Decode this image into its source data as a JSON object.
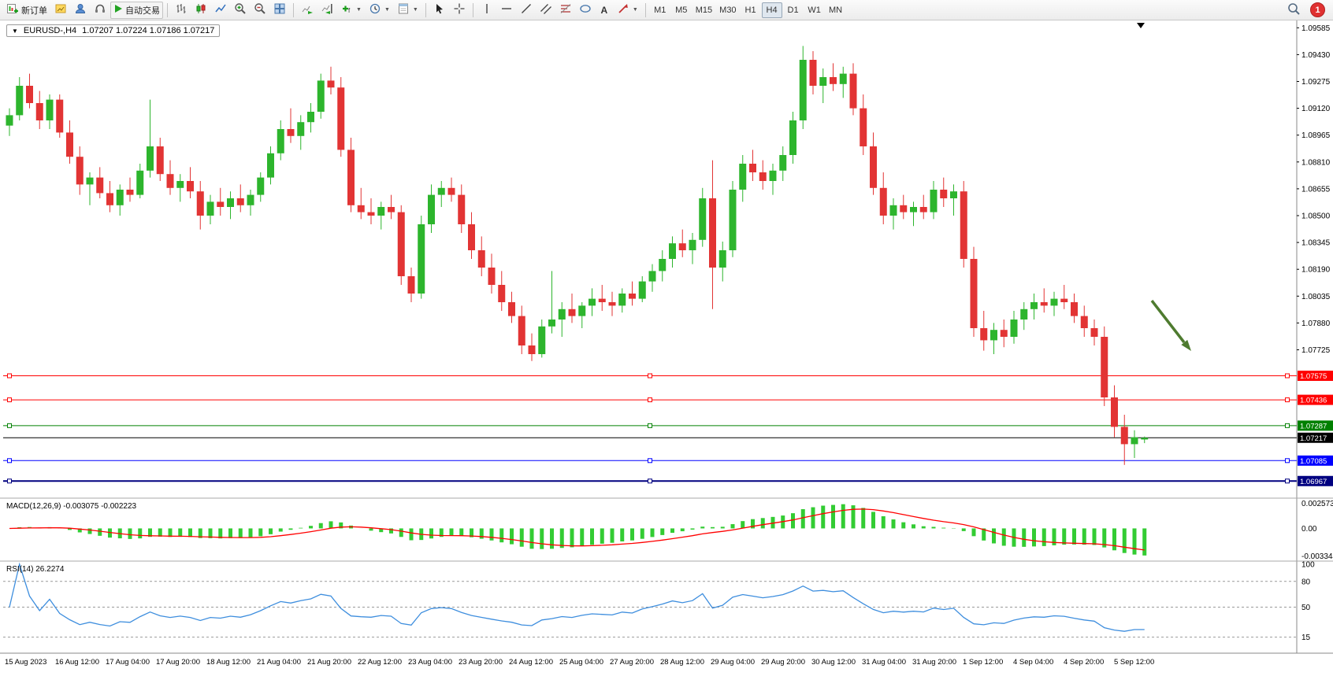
{
  "toolbar": {
    "new_order_label": "新订单",
    "autotrading_label": "自动交易",
    "timeframes": [
      "M1",
      "M5",
      "M15",
      "M30",
      "H1",
      "H4",
      "D1",
      "W1",
      "MN"
    ],
    "active_timeframe": "H4",
    "notification_count": "1"
  },
  "chart": {
    "symbol_period": "EURUSD-,H4",
    "ohlc": "1.07207 1.07224 1.07186 1.07217"
  },
  "indicators": {
    "macd_label": "MACD(12,26,9) -0.003075 -0.002223",
    "rsi_label": "RSI(14) 26.2274"
  },
  "chart_data": {
    "type": "candlestick",
    "symbol": "EURUSD-",
    "timeframe": "H4",
    "current": {
      "open": 1.07207,
      "high": 1.07224,
      "low": 1.07186,
      "close": 1.07217
    },
    "colors": {
      "bull": "#2db52d",
      "bear": "#e23434",
      "macd_hist": "#33cc33",
      "macd_signal": "#ff0000",
      "rsi_line": "#3e8ede",
      "arrow": "#4e7b2f"
    },
    "price_axis_ticks": [
      "1.09585",
      "1.09430",
      "1.09275",
      "1.09120",
      "1.08965",
      "1.08810",
      "1.08655",
      "1.08500",
      "1.08345",
      "1.08190",
      "1.08035",
      "1.07880",
      "1.07725"
    ],
    "price_range": {
      "max": 1.096,
      "min": 1.0688
    },
    "hlines": [
      {
        "price": 1.07575,
        "label": "1.07575",
        "color": "#ff0000",
        "handles": true,
        "width": 1
      },
      {
        "price": 1.07436,
        "label": "1.07436",
        "color": "#ff0000",
        "handles": true,
        "width": 1
      },
      {
        "price": 1.07287,
        "label": "1.07287",
        "color": "#008000",
        "handles": true,
        "width": 1
      },
      {
        "price": 1.07217,
        "label": "1.07217",
        "color": "#000000",
        "handles": false,
        "width": 1
      },
      {
        "price": 1.07085,
        "label": "1.07085",
        "color": "#0000ff",
        "handles": true,
        "width": 1
      },
      {
        "price": 1.06967,
        "label": "1.06967",
        "color": "#000080",
        "handles": true,
        "width": 2
      }
    ],
    "macd": {
      "params": [
        12,
        26,
        9
      ],
      "main": -0.003075,
      "signal": -0.002223,
      "axis_labels": [
        "0.002573",
        "0.00",
        "-0.003344"
      ]
    },
    "rsi": {
      "period": 14,
      "value": 26.2274,
      "axis_labels": [
        "100",
        "80",
        "50",
        "15"
      ],
      "dashed_levels": [
        80,
        50,
        15
      ]
    },
    "time_labels": [
      "15 Aug 2023",
      "16 Aug 12:00",
      "17 Aug 04:00",
      "17 Aug 20:00",
      "18 Aug 12:00",
      "21 Aug 04:00",
      "21 Aug 20:00",
      "22 Aug 12:00",
      "23 Aug 04:00",
      "23 Aug 20:00",
      "24 Aug 12:00",
      "25 Aug 04:00",
      "27 Aug 20:00",
      "28 Aug 12:00",
      "29 Aug 04:00",
      "29 Aug 20:00",
      "30 Aug 12:00",
      "31 Aug 04:00",
      "31 Aug 20:00",
      "1 Sep 12:00",
      "4 Sep 04:00",
      "4 Sep 20:00",
      "5 Sep 12:00"
    ],
    "candles": [
      [
        1.0902,
        1.0912,
        1.0896,
        1.0908
      ],
      [
        1.0908,
        1.093,
        1.0905,
        1.0925
      ],
      [
        1.0925,
        1.0932,
        1.0912,
        1.0915
      ],
      [
        1.0915,
        1.0922,
        1.09,
        1.0905
      ],
      [
        1.0905,
        1.092,
        1.09,
        1.0917
      ],
      [
        1.0917,
        1.092,
        1.0895,
        1.0898
      ],
      [
        1.0898,
        1.0905,
        1.088,
        1.0884
      ],
      [
        1.0884,
        1.089,
        1.0862,
        1.0868
      ],
      [
        1.0868,
        1.0875,
        1.0856,
        1.0872
      ],
      [
        1.0872,
        1.0878,
        1.086,
        1.0863
      ],
      [
        1.0863,
        1.087,
        1.0852,
        1.0856
      ],
      [
        1.0856,
        1.0868,
        1.085,
        1.0865
      ],
      [
        1.0865,
        1.0872,
        1.0858,
        1.0862
      ],
      [
        1.0862,
        1.088,
        1.086,
        1.0876
      ],
      [
        1.0876,
        1.0917,
        1.0872,
        1.089
      ],
      [
        1.089,
        1.0895,
        1.087,
        1.0874
      ],
      [
        1.0874,
        1.0882,
        1.0862,
        1.0866
      ],
      [
        1.0866,
        1.0874,
        1.0858,
        1.087
      ],
      [
        1.087,
        1.0878,
        1.086,
        1.0864
      ],
      [
        1.0864,
        1.087,
        1.0842,
        1.085
      ],
      [
        1.085,
        1.0862,
        1.0845,
        1.0858
      ],
      [
        1.0858,
        1.0866,
        1.085,
        1.0855
      ],
      [
        1.0855,
        1.0864,
        1.0848,
        1.086
      ],
      [
        1.086,
        1.0868,
        1.0852,
        1.0856
      ],
      [
        1.0856,
        1.0865,
        1.085,
        1.0862
      ],
      [
        1.0862,
        1.0875,
        1.0858,
        1.0872
      ],
      [
        1.0872,
        1.089,
        1.0868,
        1.0886
      ],
      [
        1.0886,
        1.0905,
        1.0882,
        1.09
      ],
      [
        1.09,
        1.0912,
        1.0892,
        1.0896
      ],
      [
        1.0896,
        1.0908,
        1.0888,
        1.0904
      ],
      [
        1.0904,
        1.0915,
        1.0898,
        1.091
      ],
      [
        1.091,
        1.0932,
        1.0906,
        1.0928
      ],
      [
        1.0928,
        1.0936,
        1.092,
        1.0924
      ],
      [
        1.0924,
        1.093,
        1.0884,
        1.0888
      ],
      [
        1.0888,
        1.0895,
        1.0852,
        1.0856
      ],
      [
        1.0856,
        1.0866,
        1.0848,
        1.0852
      ],
      [
        1.0852,
        1.086,
        1.0845,
        1.085
      ],
      [
        1.085,
        1.0858,
        1.0842,
        1.0855
      ],
      [
        1.0855,
        1.0862,
        1.0848,
        1.0852
      ],
      [
        1.0852,
        1.0856,
        1.081,
        1.0815
      ],
      [
        1.0815,
        1.082,
        1.08,
        1.0805
      ],
      [
        1.0805,
        1.085,
        1.0802,
        1.0845
      ],
      [
        1.0845,
        1.0868,
        1.084,
        1.0862
      ],
      [
        1.0862,
        1.087,
        1.0855,
        1.0866
      ],
      [
        1.0866,
        1.0872,
        1.0858,
        1.0862
      ],
      [
        1.0862,
        1.0868,
        1.084,
        1.0845
      ],
      [
        1.0845,
        1.0852,
        1.0825,
        1.083
      ],
      [
        1.083,
        1.0838,
        1.0815,
        1.082
      ],
      [
        1.082,
        1.0828,
        1.0805,
        1.081
      ],
      [
        1.081,
        1.0818,
        1.0795,
        1.08
      ],
      [
        1.08,
        1.0806,
        1.0788,
        1.0792
      ],
      [
        1.0792,
        1.0798,
        1.077,
        1.0775
      ],
      [
        1.0775,
        1.0782,
        1.0766,
        1.077
      ],
      [
        1.077,
        1.079,
        1.0768,
        1.0786
      ],
      [
        1.0786,
        1.0818,
        1.0782,
        1.079
      ],
      [
        1.079,
        1.08,
        1.078,
        1.0796
      ],
      [
        1.0796,
        1.0805,
        1.0788,
        1.0792
      ],
      [
        1.0792,
        1.08,
        1.0785,
        1.0798
      ],
      [
        1.0798,
        1.0808,
        1.0792,
        1.0802
      ],
      [
        1.0802,
        1.081,
        1.0795,
        1.08
      ],
      [
        1.08,
        1.0806,
        1.0792,
        1.0798
      ],
      [
        1.0798,
        1.0808,
        1.0794,
        1.0805
      ],
      [
        1.0805,
        1.0812,
        1.0798,
        1.0802
      ],
      [
        1.0802,
        1.0815,
        1.08,
        1.0812
      ],
      [
        1.0812,
        1.0822,
        1.0806,
        1.0818
      ],
      [
        1.0818,
        1.083,
        1.0812,
        1.0825
      ],
      [
        1.0825,
        1.0838,
        1.082,
        1.0834
      ],
      [
        1.0834,
        1.0842,
        1.0826,
        1.083
      ],
      [
        1.083,
        1.084,
        1.0822,
        1.0836
      ],
      [
        1.0836,
        1.0866,
        1.0832,
        1.086
      ],
      [
        1.086,
        1.0882,
        1.0796,
        1.082
      ],
      [
        1.082,
        1.0835,
        1.0812,
        1.083
      ],
      [
        1.083,
        1.087,
        1.0826,
        1.0865
      ],
      [
        1.0865,
        1.0885,
        1.0858,
        1.088
      ],
      [
        1.088,
        1.0888,
        1.087,
        1.0875
      ],
      [
        1.0875,
        1.0882,
        1.0865,
        1.087
      ],
      [
        1.087,
        1.088,
        1.0862,
        1.0876
      ],
      [
        1.0876,
        1.089,
        1.087,
        1.0885
      ],
      [
        1.0885,
        1.091,
        1.088,
        1.0905
      ],
      [
        1.0905,
        1.0948,
        1.09,
        1.094
      ],
      [
        1.094,
        1.0945,
        1.092,
        1.0925
      ],
      [
        1.0925,
        1.0935,
        1.0915,
        1.093
      ],
      [
        1.093,
        1.0938,
        1.0922,
        1.0926
      ],
      [
        1.0926,
        1.0936,
        1.0918,
        1.0932
      ],
      [
        1.0932,
        1.0938,
        1.0908,
        1.0912
      ],
      [
        1.0912,
        1.092,
        1.0885,
        1.089
      ],
      [
        1.089,
        1.0898,
        1.0862,
        1.0866
      ],
      [
        1.0866,
        1.0875,
        1.0845,
        1.085
      ],
      [
        1.085,
        1.086,
        1.0842,
        1.0856
      ],
      [
        1.0856,
        1.0862,
        1.0848,
        1.0852
      ],
      [
        1.0852,
        1.0858,
        1.0844,
        1.0855
      ],
      [
        1.0855,
        1.0862,
        1.0848,
        1.0852
      ],
      [
        1.0852,
        1.087,
        1.0848,
        1.0865
      ],
      [
        1.0865,
        1.0872,
        1.0855,
        1.086
      ],
      [
        1.086,
        1.0868,
        1.085,
        1.0864
      ],
      [
        1.0864,
        1.087,
        1.082,
        1.0825
      ],
      [
        1.0825,
        1.0832,
        1.078,
        1.0785
      ],
      [
        1.0785,
        1.0795,
        1.0772,
        1.0778
      ],
      [
        1.0778,
        1.0788,
        1.077,
        1.0784
      ],
      [
        1.0784,
        1.079,
        1.0774,
        1.078
      ],
      [
        1.078,
        1.0795,
        1.0776,
        1.079
      ],
      [
        1.079,
        1.08,
        1.0784,
        1.0796
      ],
      [
        1.0796,
        1.0805,
        1.079,
        1.08
      ],
      [
        1.08,
        1.0808,
        1.0794,
        1.0798
      ],
      [
        1.0798,
        1.0806,
        1.0792,
        1.0802
      ],
      [
        1.0802,
        1.081,
        1.0796,
        1.08
      ],
      [
        1.08,
        1.0805,
        1.0788,
        1.0792
      ],
      [
        1.0792,
        1.0798,
        1.078,
        1.0785
      ],
      [
        1.0785,
        1.079,
        1.0775,
        1.078
      ],
      [
        1.078,
        1.0786,
        1.074,
        1.0745
      ],
      [
        1.0745,
        1.0752,
        1.0722,
        1.0728
      ],
      [
        1.0728,
        1.0735,
        1.0706,
        1.0718
      ],
      [
        1.0718,
        1.0726,
        1.071,
        1.0722
      ],
      [
        1.07207,
        1.07224,
        1.07186,
        1.07217
      ]
    ]
  }
}
